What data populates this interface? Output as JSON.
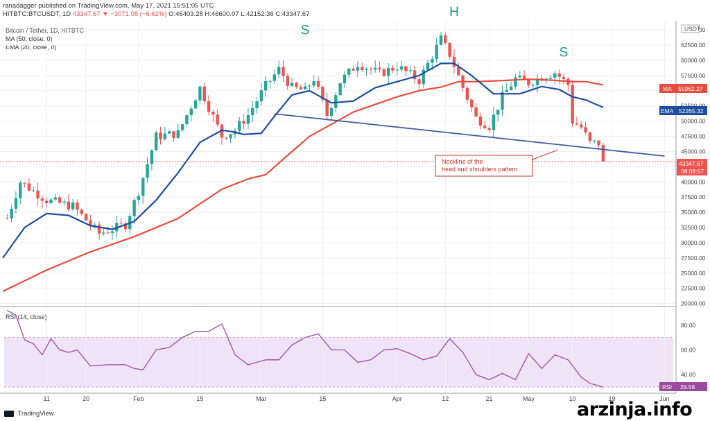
{
  "header": {
    "line1": "ranadagger published on TradingView.com, May 17, 2021 15:51:05 UTC",
    "symbol": "HITBTC:BTCUSDT, 1D",
    "price": "43347.67",
    "change": "−3071.08 (−6.62%)",
    "ohlc": "O:46403.28 H:46600.07 L:42152.36 C:43347.67"
  },
  "legend": {
    "title": "Bitcoin / Tether, 1D, HITBTC",
    "ma": "MA (50, close, 0)",
    "ema": "EMA (20, close, 0)",
    "rsi": "RSI (14, close)"
  },
  "footer": {
    "brand": "TradingView",
    "watermark": "arzinja.info"
  },
  "colors": {
    "up": "#26a69a",
    "down": "#ef5350",
    "ma": "#e74c3c",
    "ema": "#1c4da1",
    "neckline": "#3d5a9e",
    "rsi": "#9b4a9e"
  },
  "chart_data": {
    "type": "line",
    "currency_unit": "USDT",
    "y_ticks": [
      "65000.00",
      "62500.00",
      "60000.00",
      "57500.00",
      "55000.00",
      "52500.00",
      "50000.00",
      "47500.00",
      "45000.00",
      "42500.00",
      "40000.00",
      "37500.00",
      "35000.00",
      "32500.00",
      "30000.00",
      "27500.00",
      "25000.00",
      "22500.00",
      "20000.00"
    ],
    "x_ticks": [
      "11",
      "20",
      "Feb",
      "15",
      "Mar",
      "15",
      "Apr",
      "12",
      "21",
      "May",
      "10",
      "19",
      "Jun"
    ],
    "x_tick_days": [
      10,
      19,
      31,
      45,
      59,
      73,
      90,
      101,
      111,
      120,
      130,
      139,
      151
    ],
    "price_range": [
      19500,
      66500
    ],
    "close_series": {
      "name": "BTCUSDT close",
      "x": [
        1,
        4,
        10,
        16,
        22,
        28,
        31,
        35,
        40,
        45,
        50,
        53,
        56,
        60,
        63,
        66,
        69,
        71,
        74,
        77,
        81,
        86,
        90,
        95,
        100,
        102,
        105,
        108,
        111,
        114,
        117,
        120,
        123,
        126,
        129,
        130,
        132,
        134,
        136,
        137
      ],
      "values": [
        34000,
        40000,
        37000,
        36000,
        31500,
        33000,
        38500,
        47500,
        48000,
        55500,
        47500,
        48500,
        51000,
        55800,
        58500,
        55500,
        55000,
        57000,
        51000,
        56500,
        59500,
        57800,
        59000,
        56700,
        63500,
        61000,
        55500,
        50500,
        49200,
        54000,
        57000,
        56300,
        57300,
        58000,
        56000,
        50000,
        49000,
        46400,
        46400,
        43348
      ]
    },
    "series": [
      {
        "name": "MA (50, close, 0)",
        "badge_value": "55962.27",
        "x": [
          0,
          10,
          20,
          30,
          40,
          50,
          56,
          60,
          66,
          70,
          80,
          90,
          95,
          100,
          104,
          108,
          115,
          120,
          126,
          130,
          133,
          137
        ],
        "values": [
          22000,
          25500,
          28500,
          31000,
          34000,
          38800,
          40500,
          41200,
          45000,
          47500,
          51500,
          54000,
          55000,
          55600,
          56500,
          56500,
          56700,
          56900,
          56700,
          56500,
          56500,
          55962
        ]
      },
      {
        "name": "EMA (20, close, 0)",
        "badge_value": "52265.32",
        "x": [
          0,
          5,
          10,
          15,
          20,
          25,
          30,
          35,
          40,
          45,
          50,
          53,
          55,
          59,
          62,
          66,
          70,
          75,
          80,
          85,
          90,
          95,
          100,
          103,
          107,
          112,
          118,
          123,
          127,
          130,
          133,
          137
        ],
        "values": [
          27500,
          32500,
          34800,
          34500,
          32800,
          32200,
          33500,
          37000,
          41500,
          46500,
          48500,
          48200,
          47800,
          48000,
          50800,
          54300,
          55000,
          53000,
          53300,
          55500,
          56500,
          57500,
          59500,
          59500,
          57500,
          54500,
          54500,
          55700,
          55200,
          54000,
          53500,
          52265
        ]
      }
    ],
    "neckline_points": [
      [
        62,
        51200
      ],
      [
        151,
        44250
      ]
    ],
    "last_price": {
      "value": "43347.67",
      "countdown": "08:08:57"
    },
    "pattern_labels": [
      {
        "text": "S",
        "x": 69,
        "price": 64300
      },
      {
        "text": "H",
        "x": 103,
        "price": 67300
      },
      {
        "text": "S",
        "x": 128,
        "price": 60600
      }
    ],
    "annotation": {
      "line1": "Neckline of the",
      "line2": "head and shoulders pattern"
    },
    "rsi": {
      "range": [
        25,
        95
      ],
      "ticks": [
        "80.00",
        "60.00",
        "40.00"
      ],
      "last": "29.58",
      "x": [
        1,
        3,
        5,
        7,
        9,
        11,
        13,
        15,
        17,
        20,
        24,
        28,
        30,
        32,
        35,
        38,
        41,
        44,
        47,
        50,
        53,
        56,
        60,
        63,
        66,
        69,
        72,
        75,
        78,
        81,
        84,
        87,
        90,
        93,
        96,
        99,
        102,
        105,
        108,
        111,
        114,
        117,
        120,
        123,
        126,
        129,
        132,
        134,
        137
      ],
      "values": [
        92,
        88,
        68,
        65,
        56,
        69,
        60,
        58,
        60,
        47,
        48,
        48,
        45,
        44,
        60,
        62,
        70,
        75,
        75,
        81,
        56,
        48,
        52,
        52,
        64,
        70,
        73,
        60,
        60,
        50,
        52,
        60,
        61,
        57,
        52,
        55,
        69,
        58,
        40,
        36,
        41,
        36,
        57,
        45,
        56,
        52,
        38,
        33,
        30
      ]
    }
  }
}
